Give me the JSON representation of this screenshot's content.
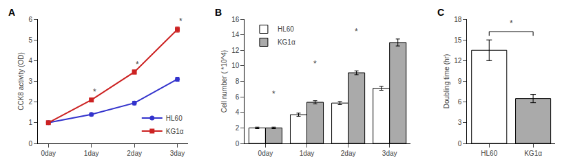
{
  "chart_data": [
    {
      "type": "line",
      "title": "A",
      "categories": [
        "0day",
        "1day",
        "2day",
        "3day"
      ],
      "series": [
        {
          "name": "HL60",
          "color": "#3333cc",
          "marker": "circle",
          "values": [
            1.0,
            1.4,
            1.95,
            3.1
          ],
          "errors": [
            0.0,
            0.07,
            0.09,
            0.1
          ]
        },
        {
          "name": "KG1α",
          "color": "#cc2222",
          "marker": "square",
          "values": [
            1.0,
            2.1,
            3.45,
            5.5
          ],
          "errors": [
            0.0,
            0.09,
            0.1,
            0.13
          ]
        }
      ],
      "ylabel": "CCK8 activity (OD)",
      "ylim": [
        0,
        6
      ],
      "yticks": [
        0,
        1,
        2,
        3,
        4,
        5,
        6
      ],
      "grid": false,
      "legend": "lower right",
      "annotations": [
        {
          "text": "*",
          "x": "1day",
          "y": 2.18
        },
        {
          "text": "*",
          "x": "2day",
          "y": 3.53
        },
        {
          "text": "*",
          "x": "3day",
          "y": 5.6
        }
      ]
    },
    {
      "type": "bar",
      "title": "B",
      "categories": [
        "0day",
        "1day",
        "2day",
        "3day"
      ],
      "series": [
        {
          "name": "HL60",
          "color": "white",
          "values": [
            2.0,
            3.7,
            5.2,
            7.1
          ],
          "errors": [
            0.1,
            0.2,
            0.2,
            0.25
          ]
        },
        {
          "name": "KG1α",
          "color": "#aaaaaa",
          "values": [
            2.0,
            5.3,
            9.1,
            13.0
          ],
          "errors": [
            0.1,
            0.2,
            0.25,
            0.45
          ]
        }
      ],
      "ylabel": "Cell number ( *10^4)",
      "ylim": [
        0,
        16
      ],
      "yticks": [
        0,
        2,
        4,
        6,
        8,
        10,
        12,
        14,
        16
      ],
      "grid": false,
      "legend": "upper left",
      "annotations": [
        {
          "text": "*",
          "x": "0day",
          "series": "KG1α",
          "y": 5.6
        },
        {
          "text": "*",
          "x": "1day",
          "series": "KG1α",
          "y": 9.5
        },
        {
          "text": "*",
          "x": "2day",
          "series": "KG1α",
          "y": 13.6
        }
      ]
    },
    {
      "type": "bar",
      "title": "C",
      "categories": [
        "HL60",
        "KG1α"
      ],
      "values": [
        13.5,
        6.5
      ],
      "errors": [
        1.5,
        0.6
      ],
      "colors": [
        "white",
        "#aaaaaa"
      ],
      "ylabel": "Doubling time (hr)",
      "ylim": [
        0,
        18
      ],
      "yticks": [
        0,
        3,
        6,
        9,
        12,
        15,
        18
      ],
      "grid": false,
      "bracket": {
        "between": [
          "HL60",
          "KG1α"
        ],
        "y": 16.2,
        "text": "*",
        "text_y": 16.5
      }
    }
  ]
}
